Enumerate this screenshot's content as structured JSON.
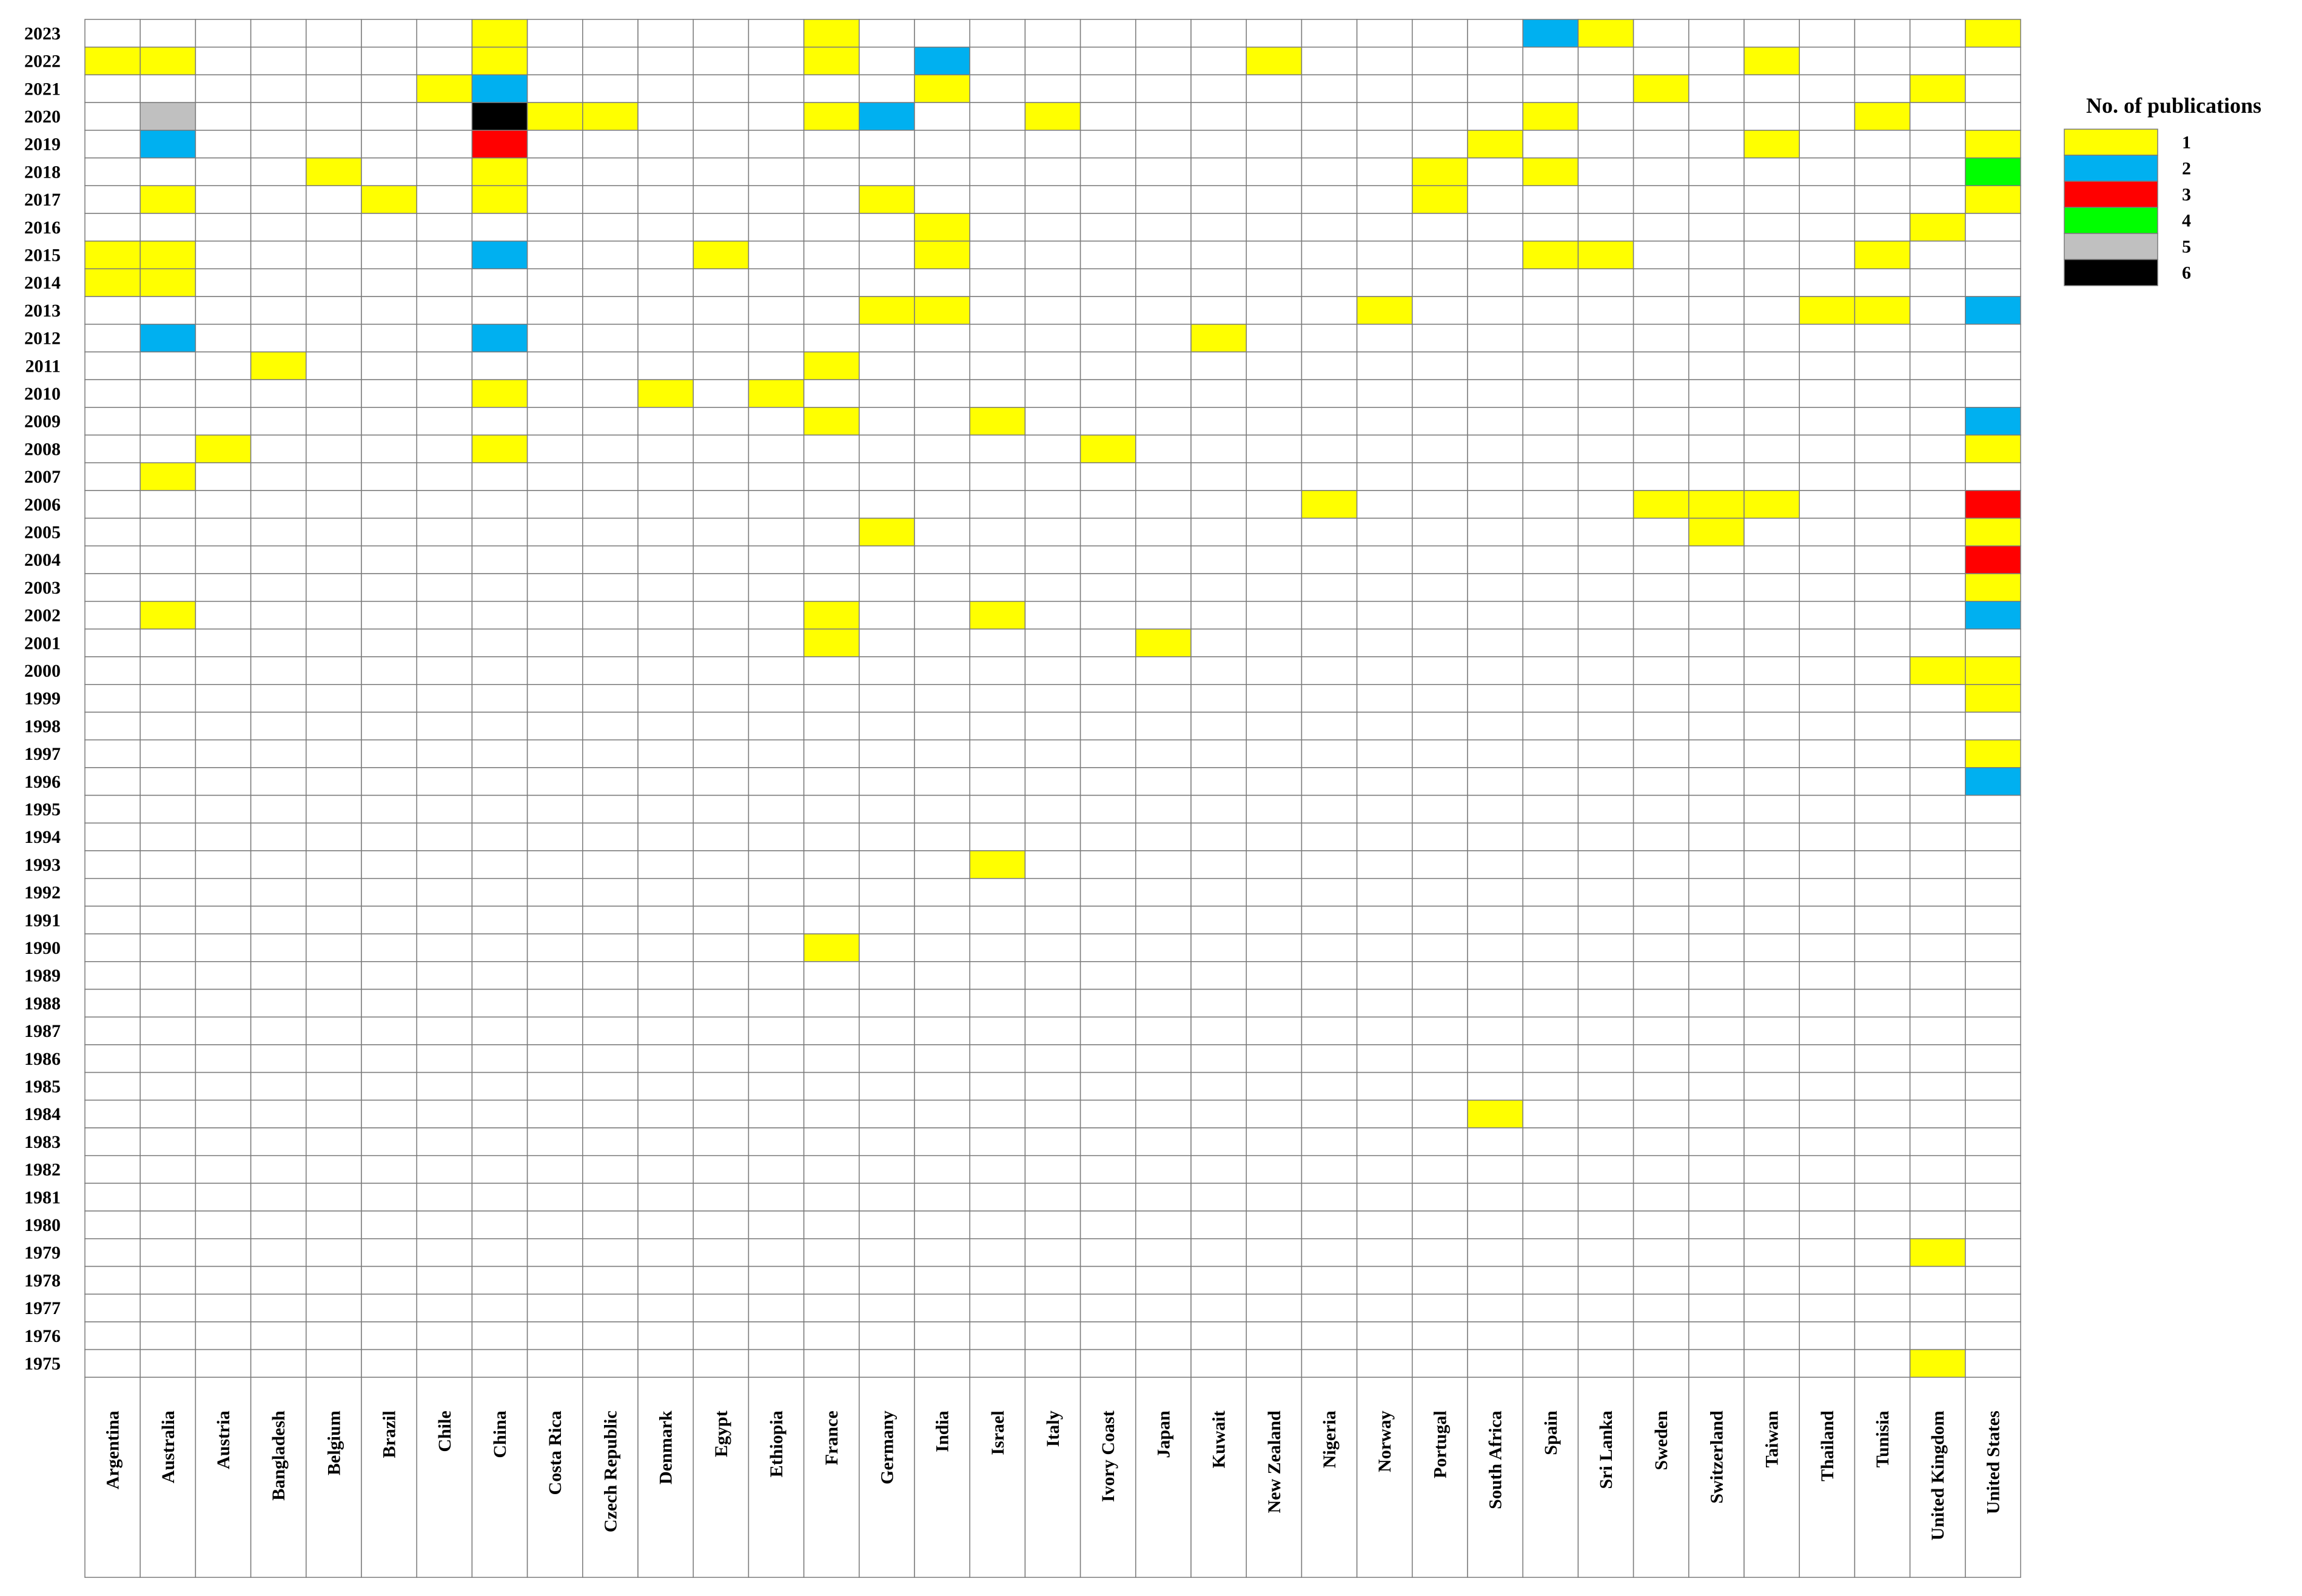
{
  "chart_data": {
    "type": "heatmap",
    "x_categories": [
      "Argentina",
      "Australia",
      "Austria",
      "Bangladesh",
      "Belgium",
      "Brazil",
      "Chile",
      "China",
      "Costa Rica",
      "Czech Republic",
      "Denmark",
      "Egypt",
      "Ethiopia",
      "France",
      "Germany",
      "India",
      "Israel",
      "Italy",
      "Ivory Coast",
      "Japan",
      "Kuwait",
      "New Zealand",
      "Nigeria",
      "Norway",
      "Portugal",
      "South Africa",
      "Spain",
      "Sri Lanka",
      "Sweden",
      "Switzerland",
      "Taiwan",
      "Thailand",
      "Tunisia",
      "United Kingdom",
      "United States"
    ],
    "y_categories": [
      "2023",
      "2022",
      "2021",
      "2020",
      "2019",
      "2018",
      "2017",
      "2016",
      "2015",
      "2014",
      "2013",
      "2012",
      "2011",
      "2010",
      "2009",
      "2008",
      "2007",
      "2006",
      "2005",
      "2004",
      "2003",
      "2002",
      "2001",
      "2000",
      "1999",
      "1998",
      "1997",
      "1996",
      "1995",
      "1994",
      "1993",
      "1992",
      "1991",
      "1990",
      "1989",
      "1988",
      "1987",
      "1986",
      "1985",
      "1984",
      "1983",
      "1982",
      "1981",
      "1980",
      "1979",
      "1978",
      "1977",
      "1976",
      "1975"
    ],
    "legend": {
      "title": "No. of publications",
      "entries": [
        {
          "value": 1,
          "label": "1",
          "color": "#ffff00"
        },
        {
          "value": 2,
          "label": "2",
          "color": "#00b0f0"
        },
        {
          "value": 3,
          "label": "3",
          "color": "#ff0000"
        },
        {
          "value": 4,
          "label": "4",
          "color": "#00ff00"
        },
        {
          "value": 5,
          "label": "5",
          "color": "#c0c0c0"
        },
        {
          "value": 6,
          "label": "6",
          "color": "#000000"
        }
      ]
    },
    "cells": [
      {
        "country": "Argentina",
        "year": "2022",
        "value": 1
      },
      {
        "country": "Argentina",
        "year": "2015",
        "value": 1
      },
      {
        "country": "Argentina",
        "year": "2014",
        "value": 1
      },
      {
        "country": "Australia",
        "year": "2022",
        "value": 1
      },
      {
        "country": "Australia",
        "year": "2020",
        "value": 5
      },
      {
        "country": "Australia",
        "year": "2019",
        "value": 2
      },
      {
        "country": "Australia",
        "year": "2017",
        "value": 1
      },
      {
        "country": "Australia",
        "year": "2015",
        "value": 1
      },
      {
        "country": "Australia",
        "year": "2014",
        "value": 1
      },
      {
        "country": "Australia",
        "year": "2012",
        "value": 2
      },
      {
        "country": "Australia",
        "year": "2007",
        "value": 1
      },
      {
        "country": "Australia",
        "year": "2002",
        "value": 1
      },
      {
        "country": "Austria",
        "year": "2008",
        "value": 1
      },
      {
        "country": "Bangladesh",
        "year": "2011",
        "value": 1
      },
      {
        "country": "Belgium",
        "year": "2018",
        "value": 1
      },
      {
        "country": "Brazil",
        "year": "2017",
        "value": 1
      },
      {
        "country": "Chile",
        "year": "2021",
        "value": 1
      },
      {
        "country": "China",
        "year": "2023",
        "value": 1
      },
      {
        "country": "China",
        "year": "2022",
        "value": 1
      },
      {
        "country": "China",
        "year": "2021",
        "value": 2
      },
      {
        "country": "China",
        "year": "2020",
        "value": 6
      },
      {
        "country": "China",
        "year": "2019",
        "value": 3
      },
      {
        "country": "China",
        "year": "2018",
        "value": 1
      },
      {
        "country": "China",
        "year": "2017",
        "value": 1
      },
      {
        "country": "China",
        "year": "2015",
        "value": 2
      },
      {
        "country": "China",
        "year": "2012",
        "value": 2
      },
      {
        "country": "China",
        "year": "2010",
        "value": 1
      },
      {
        "country": "China",
        "year": "2008",
        "value": 1
      },
      {
        "country": "Costa Rica",
        "year": "2020",
        "value": 1
      },
      {
        "country": "Czech Republic",
        "year": "2020",
        "value": 1
      },
      {
        "country": "Denmark",
        "year": "2010",
        "value": 1
      },
      {
        "country": "Egypt",
        "year": "2015",
        "value": 1
      },
      {
        "country": "Ethiopia",
        "year": "2010",
        "value": 1
      },
      {
        "country": "France",
        "year": "2023",
        "value": 1
      },
      {
        "country": "France",
        "year": "2022",
        "value": 1
      },
      {
        "country": "France",
        "year": "2020",
        "value": 1
      },
      {
        "country": "France",
        "year": "2011",
        "value": 1
      },
      {
        "country": "France",
        "year": "2009",
        "value": 1
      },
      {
        "country": "France",
        "year": "2002",
        "value": 1
      },
      {
        "country": "France",
        "year": "2001",
        "value": 1
      },
      {
        "country": "France",
        "year": "1990",
        "value": 1
      },
      {
        "country": "Germany",
        "year": "2020",
        "value": 2
      },
      {
        "country": "Germany",
        "year": "2017",
        "value": 1
      },
      {
        "country": "Germany",
        "year": "2013",
        "value": 1
      },
      {
        "country": "Germany",
        "year": "2005",
        "value": 1
      },
      {
        "country": "India",
        "year": "2022",
        "value": 2
      },
      {
        "country": "India",
        "year": "2021",
        "value": 1
      },
      {
        "country": "India",
        "year": "2016",
        "value": 1
      },
      {
        "country": "India",
        "year": "2015",
        "value": 1
      },
      {
        "country": "India",
        "year": "2013",
        "value": 1
      },
      {
        "country": "Israel",
        "year": "2009",
        "value": 1
      },
      {
        "country": "Israel",
        "year": "2002",
        "value": 1
      },
      {
        "country": "Israel",
        "year": "1993",
        "value": 1
      },
      {
        "country": "Italy",
        "year": "2020",
        "value": 1
      },
      {
        "country": "Ivory Coast",
        "year": "2008",
        "value": 1
      },
      {
        "country": "Japan",
        "year": "2001",
        "value": 1
      },
      {
        "country": "Kuwait",
        "year": "2012",
        "value": 1
      },
      {
        "country": "New Zealand",
        "year": "2022",
        "value": 1
      },
      {
        "country": "Nigeria",
        "year": "2006",
        "value": 1
      },
      {
        "country": "Norway",
        "year": "2013",
        "value": 1
      },
      {
        "country": "Portugal",
        "year": "2018",
        "value": 1
      },
      {
        "country": "Portugal",
        "year": "2017",
        "value": 1
      },
      {
        "country": "South Africa",
        "year": "2019",
        "value": 1
      },
      {
        "country": "South Africa",
        "year": "1984",
        "value": 1
      },
      {
        "country": "Spain",
        "year": "2023",
        "value": 2
      },
      {
        "country": "Spain",
        "year": "2020",
        "value": 1
      },
      {
        "country": "Spain",
        "year": "2018",
        "value": 1
      },
      {
        "country": "Spain",
        "year": "2015",
        "value": 1
      },
      {
        "country": "Sri Lanka",
        "year": "2023",
        "value": 1
      },
      {
        "country": "Sri Lanka",
        "year": "2015",
        "value": 1
      },
      {
        "country": "Sweden",
        "year": "2021",
        "value": 1
      },
      {
        "country": "Sweden",
        "year": "2006",
        "value": 1
      },
      {
        "country": "Switzerland",
        "year": "2006",
        "value": 1
      },
      {
        "country": "Switzerland",
        "year": "2005",
        "value": 1
      },
      {
        "country": "Taiwan",
        "year": "2022",
        "value": 1
      },
      {
        "country": "Taiwan",
        "year": "2019",
        "value": 1
      },
      {
        "country": "Taiwan",
        "year": "2006",
        "value": 1
      },
      {
        "country": "Thailand",
        "year": "2013",
        "value": 1
      },
      {
        "country": "Tunisia",
        "year": "2020",
        "value": 1
      },
      {
        "country": "Tunisia",
        "year": "2015",
        "value": 1
      },
      {
        "country": "Tunisia",
        "year": "2013",
        "value": 1
      },
      {
        "country": "United Kingdom",
        "year": "2021",
        "value": 1
      },
      {
        "country": "United Kingdom",
        "year": "2016",
        "value": 1
      },
      {
        "country": "United Kingdom",
        "year": "2000",
        "value": 1
      },
      {
        "country": "United Kingdom",
        "year": "1979",
        "value": 1
      },
      {
        "country": "United Kingdom",
        "year": "1975",
        "value": 1
      },
      {
        "country": "United States",
        "year": "2023",
        "value": 1
      },
      {
        "country": "United States",
        "year": "2019",
        "value": 1
      },
      {
        "country": "United States",
        "year": "2018",
        "value": 4
      },
      {
        "country": "United States",
        "year": "2017",
        "value": 1
      },
      {
        "country": "United States",
        "year": "2013",
        "value": 2
      },
      {
        "country": "United States",
        "year": "2009",
        "value": 2
      },
      {
        "country": "United States",
        "year": "2008",
        "value": 1
      },
      {
        "country": "United States",
        "year": "2006",
        "value": 3
      },
      {
        "country": "United States",
        "year": "2005",
        "value": 1
      },
      {
        "country": "United States",
        "year": "2004",
        "value": 3
      },
      {
        "country": "United States",
        "year": "2003",
        "value": 1
      },
      {
        "country": "United States",
        "year": "2002",
        "value": 2
      },
      {
        "country": "United States",
        "year": "2000",
        "value": 1
      },
      {
        "country": "United States",
        "year": "1999",
        "value": 1
      },
      {
        "country": "United States",
        "year": "1997",
        "value": 1
      },
      {
        "country": "United States",
        "year": "1996",
        "value": 2
      }
    ],
    "empty_color": "#ffffff",
    "grid": true,
    "legend_position": "top-right"
  }
}
